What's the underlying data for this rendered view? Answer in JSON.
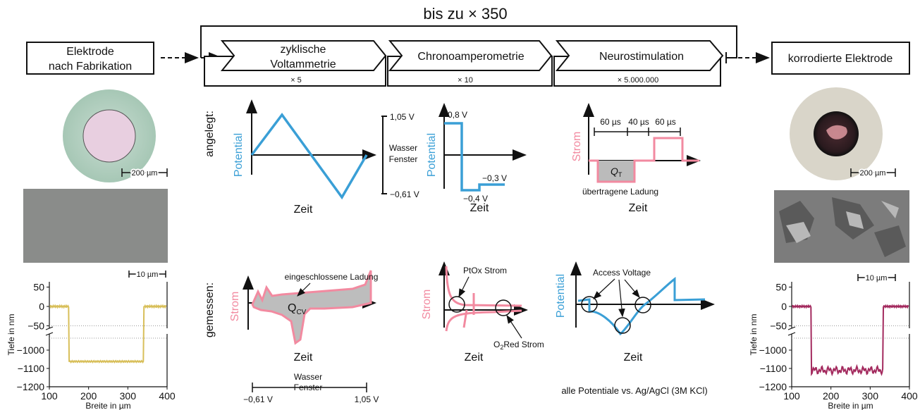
{
  "title": "bis zu × 350",
  "start_box": {
    "lines": [
      "Elektrode",
      "nach Fabrikation"
    ]
  },
  "steps": [
    {
      "label": [
        "zyklische",
        "Voltammetrie"
      ],
      "repeat": "× 5"
    },
    {
      "label": [
        "Chronoamperometrie"
      ],
      "repeat": "× 10"
    },
    {
      "label": [
        "Neurostimulation"
      ],
      "repeat": "× 5.000.000"
    }
  ],
  "end_box": {
    "label": "korrodierte Elektrode"
  },
  "left_images": {
    "optical_scale": "200 µm",
    "sem_scale": "10 µm"
  },
  "right_images": {
    "optical_scale": "200 µm",
    "sem_scale": "10 µm"
  },
  "profiles": [
    {
      "y_ticks_upper": [
        "50",
        "0",
        "−50"
      ],
      "y_ticks_lower": [
        "−1000",
        "−1100",
        "−1200"
      ],
      "x_ticks": [
        "100",
        "200",
        "300",
        "400"
      ],
      "y_label": "Tiefe in nm",
      "x_label": "Breite in µm"
    },
    {
      "y_ticks_upper": [
        "50",
        "0",
        "−50"
      ],
      "y_ticks_lower": [
        "−1000",
        "−1100",
        "−1200"
      ],
      "x_ticks": [
        "100",
        "200",
        "300",
        "400"
      ],
      "y_label": "Tiefe in nm",
      "x_label": "Breite in µm"
    }
  ],
  "row_labels": {
    "applied": "angelegt:",
    "measured": "gemessen:"
  },
  "applied": {
    "cv": {
      "y_label": "Potential",
      "x_label": "Zeit",
      "upper": "1,05 V",
      "lower": "−0,61 V",
      "window": [
        "Wasser",
        "Fenster"
      ]
    },
    "ca": {
      "y_label": "Potential",
      "x_label": "Zeit",
      "high": "0,8 V",
      "mid": "−0,3 V",
      "low": "−0,4 V"
    },
    "stim": {
      "y_label": "Strom",
      "x_label": "Zeit",
      "durations": [
        "60 µs",
        "40 µs",
        "60 µs"
      ],
      "charge": {
        "main": "Q",
        "sub": "T"
      },
      "charge_label": "übertragene Ladung"
    }
  },
  "measured": {
    "cv": {
      "y_label": "Strom",
      "x_label": "Zeit",
      "annotation": "eingeschlossene Ladung",
      "charge": {
        "main": "Q",
        "sub": "CV"
      },
      "lower": "−0,61 V",
      "window": [
        "Wasser",
        "Fenster"
      ],
      "upper": "1,05 V"
    },
    "ca": {
      "y_label": "Strom",
      "x_label": "Zeit",
      "ptox": "PtOx Strom",
      "o2red": {
        "pre": "O",
        "sub": "2",
        "post": "Red Strom"
      }
    },
    "stim": {
      "y_label": "Potential",
      "x_label": "Zeit",
      "annotation": "Access Voltage"
    }
  },
  "footnote": "alle Potentiale vs. Ag/AgCl (3M KCl)"
}
